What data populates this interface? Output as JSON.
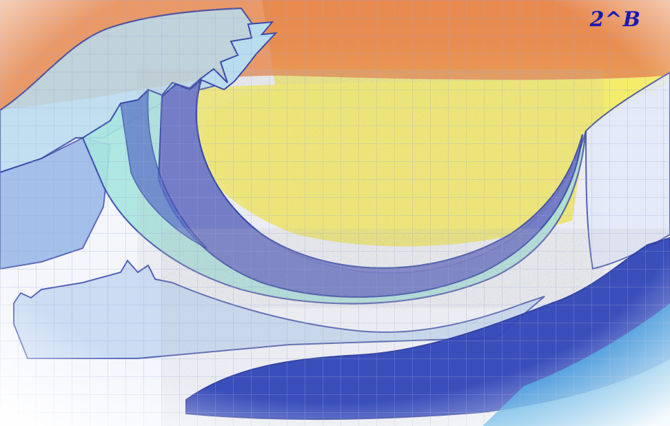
{
  "artwork": {
    "signature": "2^B",
    "colors": {
      "sky_orange": "#e8894f",
      "sky_yellow": "#f5ec6a",
      "wave_dark_blue": "#6f74c4",
      "wave_teal": "#a8e6e0",
      "wave_light_blue": "#b9dcef",
      "sea_deep_blue": "#3047b8",
      "sea_cyan": "#3aa3e0",
      "outline": "#3848a8",
      "grid_line": "#9aa6d2",
      "signature_ink": "#1a1ab4"
    }
  }
}
